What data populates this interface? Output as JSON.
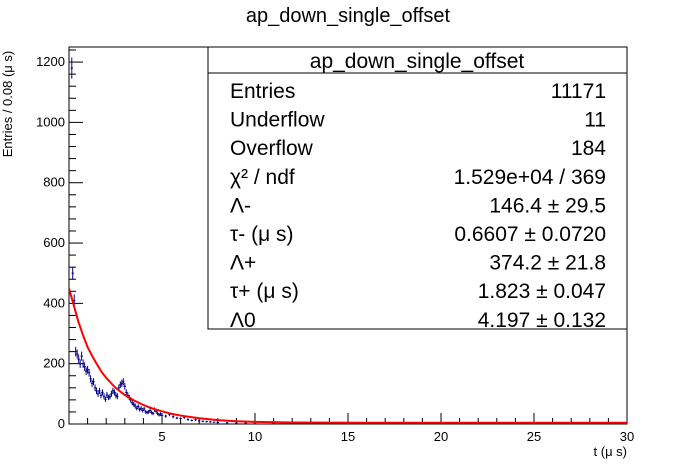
{
  "chart_data": {
    "type": "scatter",
    "title": "ap_down_single_offset",
    "xlabel": "t (μ s)",
    "ylabel": "Entries / 0.08 (μ s)",
    "xlim": [
      0,
      30
    ],
    "ylim": [
      0,
      1250
    ],
    "x_ticks": [
      5,
      10,
      15,
      20,
      25,
      30
    ],
    "y_ticks": [
      0,
      200,
      400,
      600,
      800,
      1000,
      1200
    ],
    "grid": false,
    "series": [
      {
        "color": "#000080",
        "kind": "points_with_errors",
        "x": [
          0.15,
          0.2,
          0.28,
          0.36,
          0.44,
          0.52,
          0.6,
          0.68,
          0.76,
          0.84,
          0.92,
          1.0,
          1.08,
          1.16,
          1.24,
          1.32,
          1.4,
          1.48,
          1.56,
          1.64,
          1.72,
          1.8,
          1.88,
          1.96,
          2.04,
          2.12,
          2.2,
          2.28,
          2.36,
          2.44,
          2.52,
          2.6,
          2.68,
          2.76,
          2.84,
          2.92,
          3.0,
          3.08,
          3.16,
          3.24,
          3.32,
          3.4,
          3.48,
          3.56,
          3.64,
          3.72,
          3.8,
          3.88,
          3.96,
          4.04,
          4.12,
          4.2,
          4.28,
          4.36,
          4.44,
          4.52,
          4.6,
          4.68,
          4.76,
          4.84,
          4.92,
          5.0,
          5.2,
          5.4,
          5.6,
          5.8,
          6.0,
          6.2,
          6.4,
          6.6,
          6.8,
          7.0,
          7.2,
          7.4,
          7.6,
          7.8,
          8.0,
          8.5,
          9.0,
          9.5,
          10.0,
          11.0,
          12.0,
          13.0,
          14.0,
          15.0,
          16.0,
          17.0,
          18.0,
          19.0,
          20.0,
          21.0,
          22.0,
          23.0,
          24.0,
          25.0,
          26.0,
          27.0,
          28.0,
          29.0
        ],
        "y": [
          1180,
          500,
          410,
          240,
          232,
          215,
          200,
          225,
          200,
          190,
          175,
          180,
          170,
          150,
          135,
          140,
          120,
          110,
          100,
          110,
          95,
          105,
          92,
          82,
          96,
          88,
          90,
          100,
          110,
          105,
          95,
          92,
          120,
          130,
          135,
          140,
          125,
          105,
          95,
          88,
          80,
          70,
          65,
          60,
          52,
          58,
          48,
          52,
          45,
          50,
          40,
          38,
          40,
          45,
          38,
          35,
          48,
          42,
          35,
          30,
          33,
          28,
          26,
          32,
          24,
          20,
          18,
          22,
          15,
          12,
          14,
          10,
          9,
          8,
          7,
          6,
          5,
          4,
          3,
          3,
          2,
          2,
          1,
          1,
          1,
          1,
          0,
          0,
          0,
          0,
          0,
          0,
          0,
          0,
          0,
          0,
          0,
          0,
          0,
          0
        ],
        "err": [
          35,
          22,
          20,
          16,
          15,
          15,
          14,
          15,
          14,
          14,
          13,
          13,
          13,
          12,
          12,
          12,
          11,
          11,
          10,
          10,
          10,
          10,
          10,
          9,
          10,
          9,
          9,
          10,
          10,
          10,
          10,
          10,
          11,
          11,
          12,
          12,
          11,
          10,
          10,
          9,
          9,
          8,
          8,
          8,
          7,
          8,
          7,
          7,
          7,
          7,
          6,
          6,
          6,
          7,
          6,
          6,
          7,
          6,
          6,
          5,
          6,
          5,
          5,
          6,
          5,
          4,
          4,
          5,
          4,
          3,
          4,
          3,
          3,
          3,
          3,
          2,
          2,
          2,
          2,
          2,
          1,
          1,
          1,
          1,
          1,
          1,
          0,
          0,
          0,
          0,
          0,
          0,
          0,
          0,
          0,
          0,
          0,
          0,
          0,
          0
        ]
      },
      {
        "color": "#ff0000",
        "kind": "fit_curve",
        "x": [
          0,
          0.25,
          0.5,
          0.75,
          1.0,
          1.25,
          1.5,
          1.75,
          2.0,
          2.5,
          3.0,
          3.5,
          4.0,
          4.5,
          5.0,
          5.5,
          6.0,
          7.0,
          8.0,
          9.0,
          10.0,
          12.0,
          14.0,
          16.0,
          18.0,
          20.0,
          22.0,
          24.0,
          26.0,
          28.0,
          30.0
        ],
        "y": [
          450,
          395,
          340,
          295,
          255,
          225,
          198,
          173,
          153,
          120,
          96,
          78,
          63,
          51,
          42,
          34,
          28,
          19,
          13,
          9,
          7,
          5,
          4.5,
          4.3,
          4.2,
          4.2,
          4.2,
          4.2,
          4.2,
          4.2,
          4.2
        ]
      }
    ]
  },
  "stats_box": {
    "title": "ap_down_single_offset",
    "rows": [
      {
        "label": "Entries",
        "value": "11171"
      },
      {
        "label": "Underflow",
        "value": "11"
      },
      {
        "label": "Overflow",
        "value": "184"
      },
      {
        "label": "χ² / ndf",
        "value": "1.529e+04 / 369"
      },
      {
        "label": "Λ-",
        "value": "146.4 ± 29.5"
      },
      {
        "label": "τ- (μ s)",
        "value": "0.6607 ± 0.0720"
      },
      {
        "label": "Λ+",
        "value": "374.2 ± 21.8"
      },
      {
        "label": "τ+ (μ s)",
        "value": "1.823 ± 0.047"
      },
      {
        "label": "Λ0",
        "value": "4.197 ± 0.132"
      }
    ]
  }
}
